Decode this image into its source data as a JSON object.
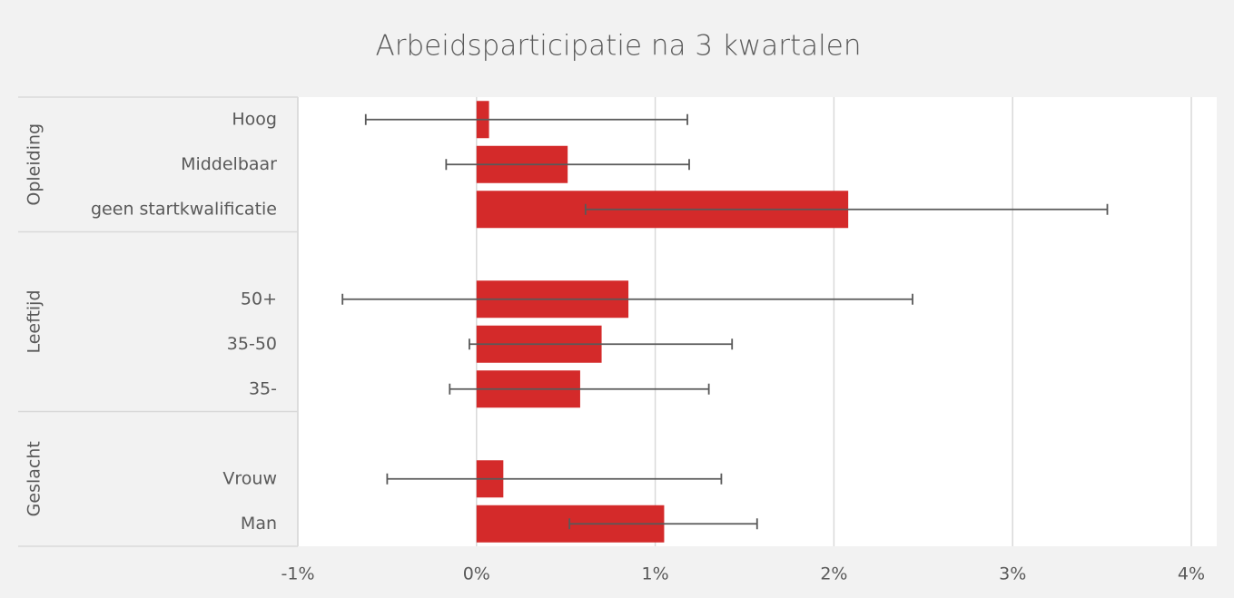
{
  "chart_data": {
    "type": "bar",
    "orientation": "horizontal",
    "title": "Arbeidsparticipatie na 3 kwartalen",
    "categories": [
      "Hoog",
      "Middelbaar",
      "geen startkwalificatie",
      null,
      "50+",
      "35-50",
      "35-",
      null,
      "Vrouw",
      "Man"
    ],
    "groups": [
      {
        "name": "Opleiding",
        "count": 3
      },
      {
        "name": "Leeftijd",
        "count": 4
      },
      {
        "name": "Geslacht",
        "count": 3
      }
    ],
    "series": [
      {
        "color": "#d42a2a",
        "values": [
          0.07,
          0.51,
          2.08,
          null,
          0.85,
          0.7,
          0.58,
          null,
          0.15,
          1.05
        ],
        "error_low": [
          -0.62,
          -0.17,
          0.61,
          null,
          -0.75,
          -0.04,
          -0.15,
          null,
          -0.5,
          0.52
        ],
        "error_high": [
          1.18,
          1.19,
          3.53,
          null,
          2.44,
          1.43,
          1.3,
          null,
          1.37,
          1.57
        ]
      }
    ],
    "xlim": [
      -1,
      4
    ],
    "xticks": [
      {
        "value": -1,
        "label": "-1%"
      },
      {
        "value": 0,
        "label": "0%"
      },
      {
        "value": 1,
        "label": "1%"
      },
      {
        "value": 2,
        "label": "2%"
      },
      {
        "value": 3,
        "label": "3%"
      },
      {
        "value": 4,
        "label": "4%"
      }
    ],
    "grid": true
  }
}
